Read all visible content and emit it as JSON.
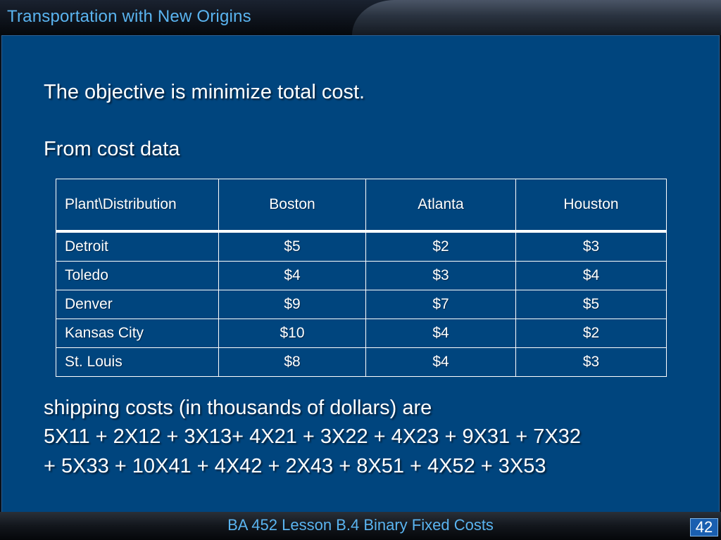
{
  "slide": {
    "title": "Transportation with New Origins",
    "line_objective": "The objective is minimize total cost.",
    "line_from": "From cost data",
    "line_shipping": "shipping costs (in thousands of dollars) are",
    "formula_line1": "5X11 + 2X12 + 3X13+ 4X21 + 3X22 + 4X23 + 9X31 + 7X32",
    "formula_line2": "+ 5X33 + 10X41 + 4X42 + 2X43 + 8X51 + 4X52 + 3X53"
  },
  "table": {
    "headers": [
      "Plant\\Distribution",
      "Boston",
      "Atlanta",
      "Houston"
    ],
    "rows": [
      [
        "Detroit",
        "$5",
        "$2",
        "$3"
      ],
      [
        "Toledo",
        "$4",
        "$3",
        "$4"
      ],
      [
        "Denver",
        "$9",
        "$7",
        "$5"
      ],
      [
        "Kansas City",
        "$10",
        "$4",
        "$2"
      ],
      [
        "St. Louis",
        "$8",
        "$4",
        "$3"
      ]
    ]
  },
  "footer": {
    "course": "BA 452  Lesson B.4 Binary Fixed Costs",
    "page_number": "42"
  },
  "colors": {
    "panel": "#00457e",
    "title_text": "#5ab4f0",
    "body_text": "#ffffff"
  }
}
